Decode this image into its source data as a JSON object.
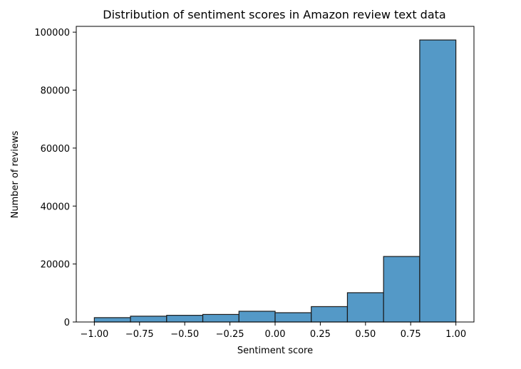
{
  "chart_data": {
    "type": "bar",
    "title": "Distribution of sentiment scores in Amazon review text data",
    "xlabel": "Sentiment score",
    "ylabel": "Number of reviews",
    "bin_edges": [
      -1.0,
      -0.8,
      -0.6,
      -0.4,
      -0.2,
      0.0,
      0.2,
      0.4,
      0.6,
      0.8,
      1.0
    ],
    "values": [
      1500,
      2000,
      2300,
      2600,
      3700,
      3200,
      5300,
      10100,
      22600,
      97300
    ],
    "xlim": [
      -1.1,
      1.1
    ],
    "ylim": [
      0,
      102000
    ],
    "x_ticks": [
      -1.0,
      -0.75,
      -0.5,
      -0.25,
      0.0,
      0.25,
      0.5,
      0.75,
      1.0
    ],
    "x_tick_labels": [
      "−1.00",
      "−0.75",
      "−0.50",
      "−0.25",
      "0.00",
      "0.25",
      "0.50",
      "0.75",
      "1.00"
    ],
    "y_ticks": [
      0,
      20000,
      40000,
      60000,
      80000,
      100000
    ],
    "y_tick_labels": [
      "0",
      "20000",
      "40000",
      "60000",
      "80000",
      "100000"
    ],
    "grid": false,
    "bar_color": "#5499c7",
    "edge_color": "#1a1a1a"
  }
}
